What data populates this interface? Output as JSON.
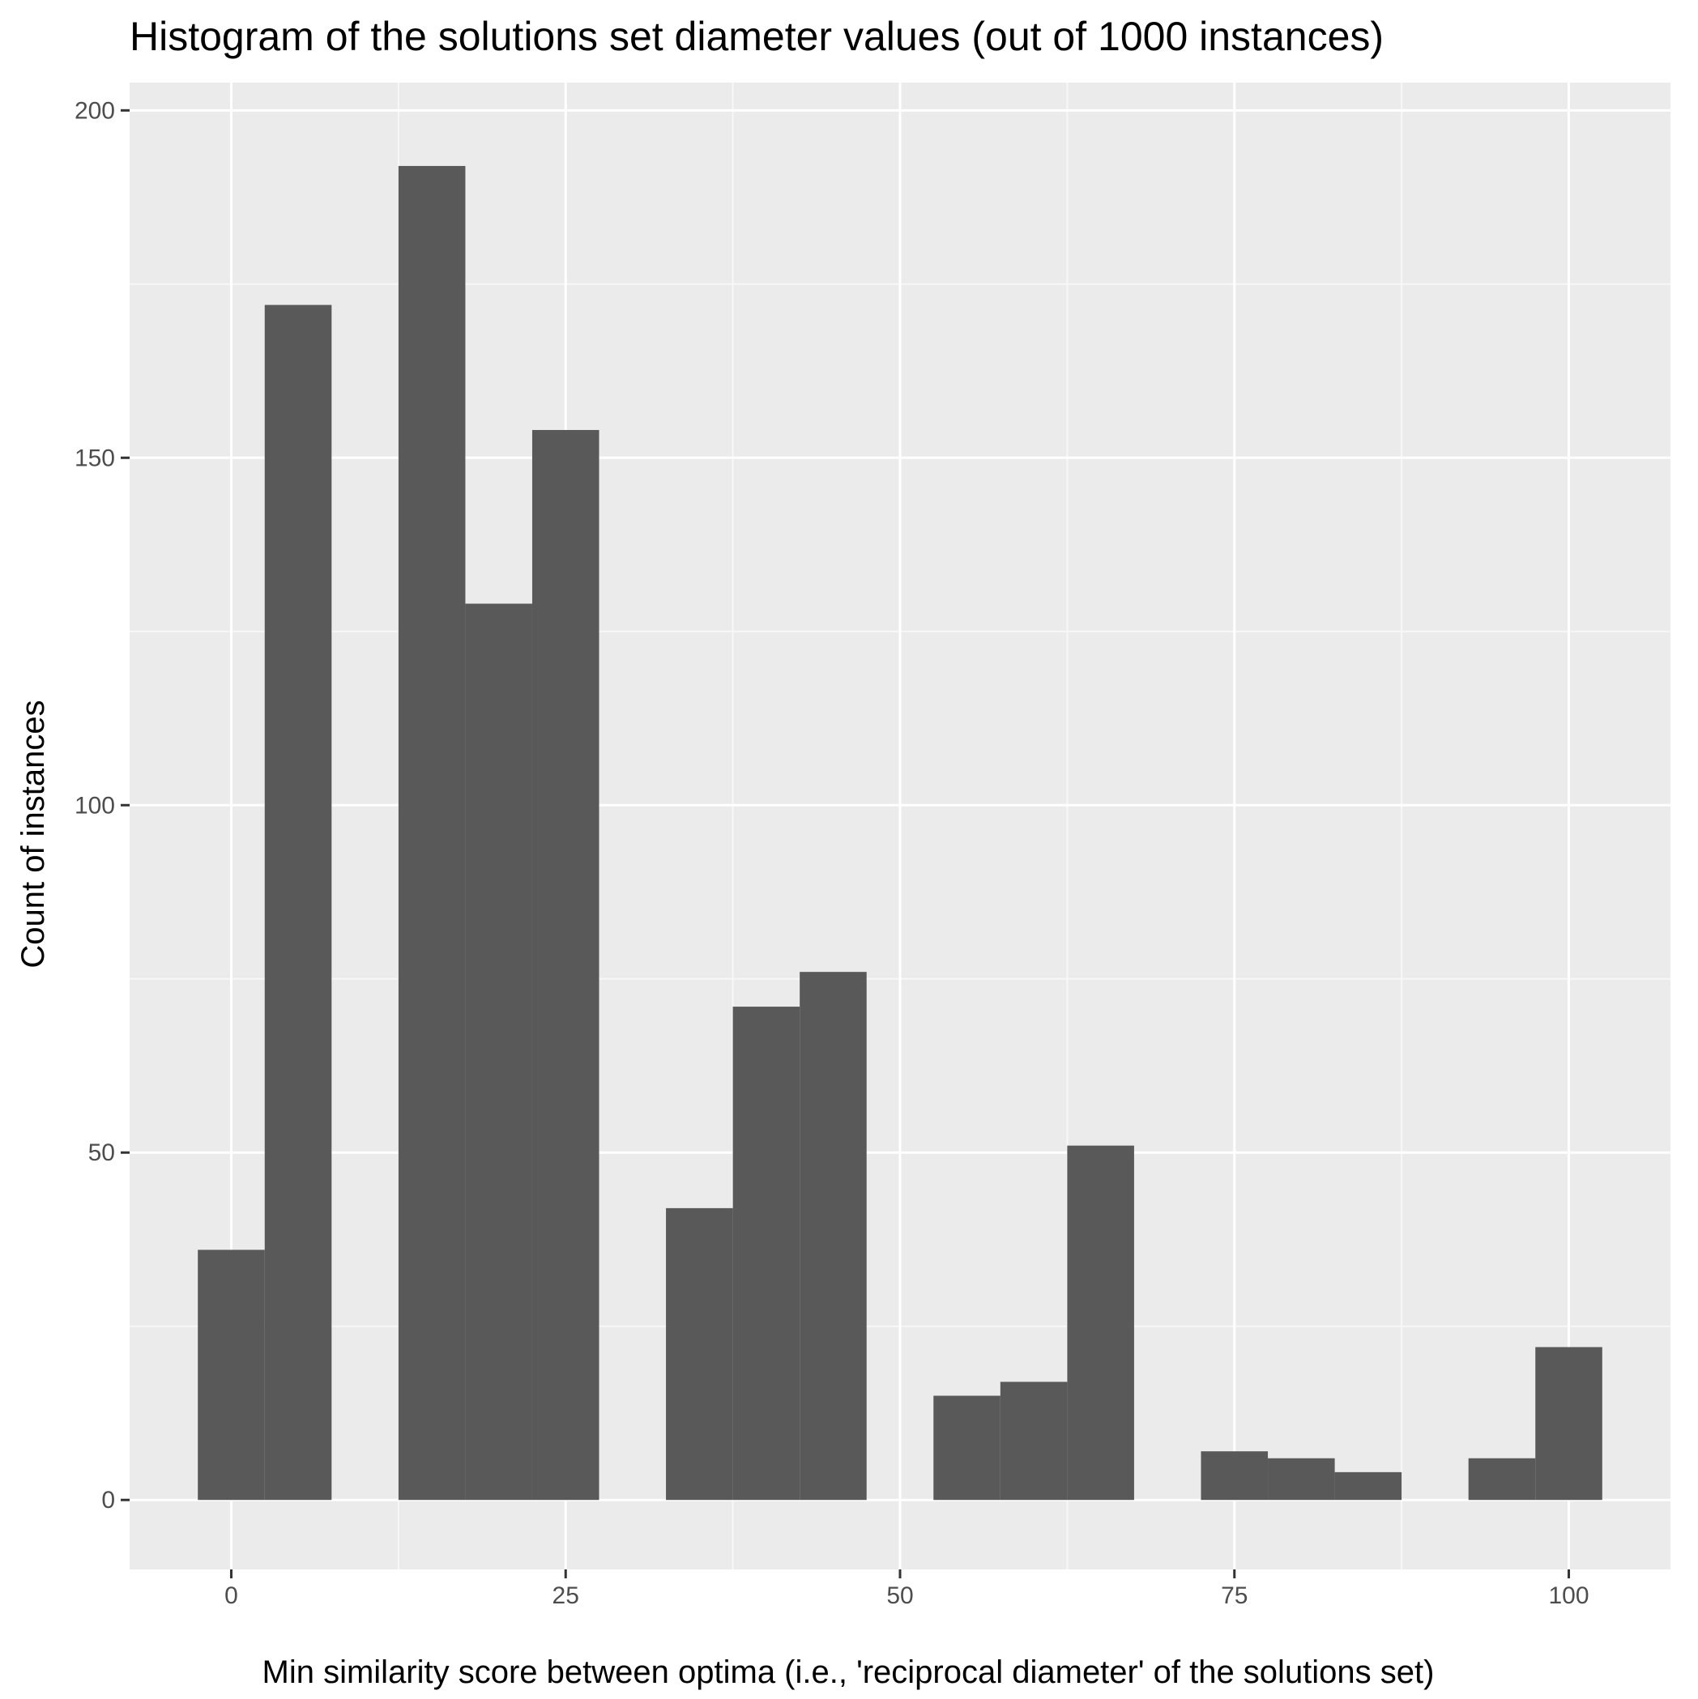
{
  "chart_data": {
    "type": "bar",
    "title": "Histogram of the solutions set diameter values (out of 1000 instances)",
    "xlabel": "Min similarity score between optima (i.e., 'reciprocal diameter' of the solutions set)",
    "ylabel": "Count of instances",
    "bin_width": 5,
    "x": [
      0,
      5,
      10,
      15,
      20,
      25,
      30,
      35,
      40,
      45,
      50,
      55,
      60,
      65,
      70,
      75,
      80,
      85,
      90,
      95,
      100
    ],
    "values": [
      36,
      172,
      0,
      192,
      129,
      154,
      0,
      42,
      71,
      76,
      0,
      15,
      17,
      51,
      0,
      7,
      6,
      4,
      0,
      6,
      22
    ],
    "xlim": [
      -7.6,
      107.6
    ],
    "ylim": [
      -10,
      204
    ],
    "x_ticks": [
      "0",
      "25",
      "50",
      "75",
      "100"
    ],
    "y_ticks": [
      "0",
      "50",
      "100",
      "150",
      "200"
    ],
    "grid": true,
    "colors": {
      "panel_background": "#ebebeb",
      "grid_major": "#ffffff",
      "grid_minor": "#f7f7f7",
      "bar_fill": "#595959",
      "tick_mark": "#333333"
    }
  }
}
